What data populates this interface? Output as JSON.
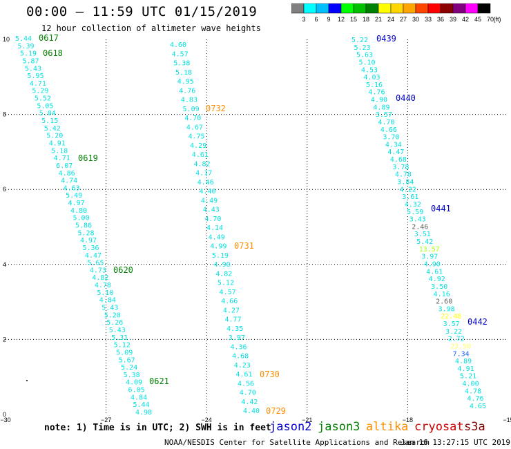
{
  "header": {
    "title": "00:00 – 11:59 UTC 01/15/2019",
    "subtitle": "12 hour collection of altimeter wave heights"
  },
  "colorbar": {
    "labels": [
      "3",
      "6",
      "9",
      "12",
      "15",
      "18",
      "21",
      "24",
      "27",
      "30",
      "33",
      "36",
      "39",
      "42",
      "45",
      "70"
    ],
    "unit": "(ft)",
    "colors": [
      "#808080",
      "#00ffff",
      "#00bfff",
      "#0000ff",
      "#00ff00",
      "#00c000",
      "#008000",
      "#ffff00",
      "#ffd700",
      "#ffa500",
      "#ff4500",
      "#ff0000",
      "#8b0000",
      "#800080",
      "#ff00ff",
      "#000000"
    ]
  },
  "axes": {
    "x_ticks": [
      "−30",
      "−27",
      "−24",
      "−21",
      "−18",
      "−15"
    ],
    "y_ticks": [
      "0",
      "2",
      "4",
      "6",
      "8",
      "10"
    ]
  },
  "tracks": [
    {
      "satellite": "jason3",
      "color": "#00e0e0",
      "values": [
        "5.44",
        "5.39",
        "5.19",
        "5.87",
        "5.43",
        "5.95",
        "4.71",
        "5.29",
        "5.52",
        "5.05",
        "5.04",
        "5.15",
        "5.42",
        "5.20",
        "4.91",
        "5.18",
        "4.71",
        "6.07",
        "4.86",
        "4.74",
        "4.63",
        "5.49",
        "4.97",
        "4.80",
        "5.00",
        "5.86",
        "5.28",
        "4.97",
        "5.36",
        "4.47",
        "5.65",
        "4.73",
        "4.82",
        "4.78",
        "5.10",
        "4.84",
        "5.43",
        "5.20",
        "5.26",
        "5.43",
        "5.31",
        "5.12",
        "5.09",
        "5.67",
        "5.24",
        "5.38",
        "4.09",
        "6.05",
        "4.84",
        "5.44",
        "4.98"
      ],
      "times": [
        "0617",
        "0618",
        "0619",
        "0620",
        "0621"
      ]
    },
    {
      "satellite": "altika",
      "color": "#00e0e0",
      "values": [
        "4.60",
        "4.57",
        "5.38",
        "5.18",
        "4.95",
        "4.76",
        "4.83",
        "5.09",
        "4.70",
        "4.67",
        "4.75",
        "4.29",
        "4.61",
        "4.82",
        "4.17",
        "4.46",
        "4.40",
        "4.49",
        "4.43",
        "4.70",
        "4.14",
        "4.49",
        "4.99",
        "5.19",
        "4.90",
        "4.82",
        "5.12",
        "4.57",
        "4.66",
        "4.27",
        "4.77",
        "4.35",
        "3.97",
        "4.36",
        "4.68",
        "4.23",
        "4.61",
        "4.56",
        "4.70",
        "4.42",
        "4.40"
      ],
      "times": [
        "0732",
        "0731",
        "0730",
        "0729"
      ]
    },
    {
      "satellite": "jason2",
      "color": "#00e0e0",
      "values": [
        "5.22",
        "5.23",
        "5.63",
        "5.10",
        "4.53",
        "4.03",
        "5.16",
        "4.76",
        "4.90",
        "4.89",
        "3.57",
        "4.70",
        "4.66",
        "3.70",
        "4.34",
        "4.47",
        "4.68",
        "3.78",
        "4.78",
        "3.84",
        "4.22",
        "3.61",
        "4.32",
        "5.59",
        "3.43",
        "2.46",
        "3.51",
        "5.42",
        "13.57",
        "3.97",
        "4.90",
        "4.61",
        "4.92",
        "3.50",
        "4.16",
        "2.60",
        "3.98",
        "22.48",
        "3.57",
        "3.22",
        "2.72",
        "23.50",
        "7.34",
        "4.89",
        "4.91",
        "5.21",
        "4.00",
        "4.78",
        "4.76",
        "4.65"
      ],
      "highlights": {
        "2.46": "#606060",
        "2.60": "#606060",
        "13.57": "#a0ff00",
        "22.48": "#ffff00",
        "23.50": "#ffff66",
        "7.34": "#2060ff"
      },
      "times": [
        "0439",
        "0440",
        "0441",
        "0442"
      ]
    }
  ],
  "legend": {
    "note": "note:  1) Time is in UTC;  2) SWH is in feet",
    "satellites": [
      {
        "name": "jason2",
        "color": "#0000cc"
      },
      {
        "name": "jason3",
        "color": "#008000"
      },
      {
        "name": "altika",
        "color": "#ff8c00"
      },
      {
        "name": "cryosat",
        "color": "#cc0000"
      },
      {
        "name": "s3a",
        "color": "#800000"
      }
    ]
  },
  "footer": {
    "credit": "NOAA/NESDIS Center for Satellite Applications and Research",
    "generated": "Jan 16 13:27:15 UTC 2019"
  }
}
